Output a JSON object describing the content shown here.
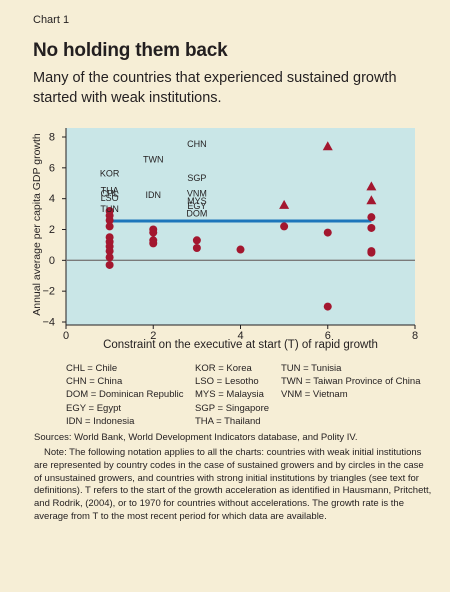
{
  "header": {
    "kicker": "Chart 1",
    "title": "No holding them back",
    "subtitle": "Many of the countries that experienced sustained growth started with weak institutions."
  },
  "colors": {
    "plot_background": "#c9e6e7",
    "page_background": "#f6eed6",
    "marker": "#a3172f",
    "average_line": "#1d76bb",
    "zero_line": "#7a7a7a"
  },
  "chart_data": {
    "type": "scatter",
    "xlabel": "Constraint on the executive at start (T) of rapid growth",
    "ylabel": "Annual average per capita GDP growth",
    "xlim": [
      0,
      8
    ],
    "ylim": [
      -4,
      9
    ],
    "xticks": [
      0,
      2,
      4,
      6,
      8
    ],
    "yticks": [
      -4,
      -2,
      0,
      2,
      4,
      6,
      8
    ],
    "reference_lines": [
      {
        "type": "horizontal",
        "y": 0
      },
      {
        "type": "segment",
        "x": [
          1,
          7
        ],
        "y": 2.55
      }
    ],
    "sustained_growers": [
      {
        "code": "CHN",
        "x": 3,
        "y": 7.5
      },
      {
        "code": "TWN",
        "x": 2,
        "y": 6.5
      },
      {
        "code": "KOR",
        "x": 1,
        "y": 5.6
      },
      {
        "code": "SGP",
        "x": 3,
        "y": 5.3
      },
      {
        "code": "THA",
        "x": 1,
        "y": 4.5
      },
      {
        "code": "CHL",
        "x": 1,
        "y": 4.3
      },
      {
        "code": "LSO",
        "x": 1,
        "y": 4.0
      },
      {
        "code": "IDN",
        "x": 2,
        "y": 4.2
      },
      {
        "code": "VNM",
        "x": 3,
        "y": 4.3
      },
      {
        "code": "MYS",
        "x": 3,
        "y": 3.8
      },
      {
        "code": "EGY",
        "x": 3,
        "y": 3.5
      },
      {
        "code": "DOM",
        "x": 3,
        "y": 3.0
      },
      {
        "code": "TUN",
        "x": 1,
        "y": 3.3
      }
    ],
    "weak_institutions_unsustained": [
      {
        "x": 1,
        "y": 3.2
      },
      {
        "x": 1,
        "y": 2.9
      },
      {
        "x": 1,
        "y": 2.6
      },
      {
        "x": 1,
        "y": 2.2
      },
      {
        "x": 1,
        "y": 1.5
      },
      {
        "x": 1,
        "y": 1.2
      },
      {
        "x": 1,
        "y": 0.9
      },
      {
        "x": 1,
        "y": 0.6
      },
      {
        "x": 1,
        "y": 0.2
      },
      {
        "x": 1,
        "y": -0.3
      },
      {
        "x": 2,
        "y": 2.0
      },
      {
        "x": 2,
        "y": 1.8
      },
      {
        "x": 2,
        "y": 1.3
      },
      {
        "x": 2,
        "y": 1.1
      },
      {
        "x": 3,
        "y": 1.3
      },
      {
        "x": 3,
        "y": 0.8
      },
      {
        "x": 4,
        "y": 0.7
      },
      {
        "x": 5,
        "y": 2.2
      },
      {
        "x": 6,
        "y": 1.8
      },
      {
        "x": 6,
        "y": -3.0
      },
      {
        "x": 7,
        "y": 2.8
      },
      {
        "x": 7,
        "y": 2.1
      },
      {
        "x": 7,
        "y": 0.6
      },
      {
        "x": 7,
        "y": 0.5
      }
    ],
    "strong_institutions": [
      {
        "x": 5,
        "y": 3.6
      },
      {
        "x": 6,
        "y": 7.4
      },
      {
        "x": 7,
        "y": 4.8
      },
      {
        "x": 7,
        "y": 3.9
      }
    ]
  },
  "legend": {
    "col1": [
      "CHL = Chile",
      "CHN = China",
      "DOM = Dominican Republic",
      "EGY = Egypt",
      "IDN = Indonesia"
    ],
    "col2": [
      "KOR = Korea",
      "LSO = Lesotho",
      "MYS = Malaysia",
      "SGP = Singapore",
      "THA = Thailand"
    ],
    "col3": [
      "TUN = Tunisia",
      "TWN = Taiwan Province of China",
      "VNM = Vietnam"
    ]
  },
  "footer": {
    "sources": "Sources: World Bank, World Development Indicators database, and Polity IV.",
    "note": "Note: The following notation applies to all the charts: countries with weak initial institutions are represented by country codes in the case of sustained growers and by circles in the case of unsustained growers, and countries with strong initial institutions by triangles (see text for definitions). T refers to the start of the growth acceleration as identified in Hausmann, Pritchett, and Rodrik, (2004), or to 1970 for countries without accelerations. The growth rate is the average from T to the most recent period for which data are available."
  }
}
